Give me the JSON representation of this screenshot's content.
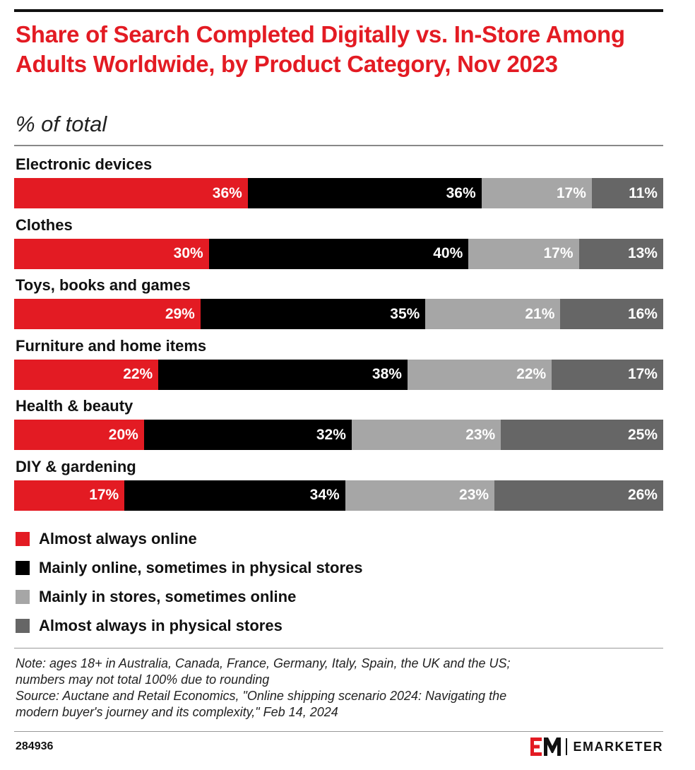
{
  "chart_data": {
    "type": "bar",
    "orientation": "horizontal",
    "stacked": true,
    "title": "Share of Search Completed Digitally vs. In-Store Among Adults Worldwide, by Product Category, Nov 2023",
    "subtitle": "% of total",
    "categories": [
      "Electronic devices",
      "Clothes",
      "Toys, books and games",
      "Furniture and home items",
      "Health & beauty",
      "DIY & gardening"
    ],
    "series": [
      {
        "name": "Almost always online",
        "color": "#e31b23",
        "values": [
          36,
          30,
          29,
          22,
          20,
          17
        ]
      },
      {
        "name": "Mainly online, sometimes in physical stores",
        "color": "#000000",
        "values": [
          36,
          40,
          35,
          38,
          32,
          34
        ]
      },
      {
        "name": "Mainly in stores, sometimes online",
        "color": "#a6a6a6",
        "values": [
          17,
          17,
          21,
          22,
          23,
          23
        ]
      },
      {
        "name": "Almost always in physical stores",
        "color": "#666666",
        "values": [
          11,
          13,
          16,
          17,
          25,
          26
        ]
      }
    ],
    "value_suffix": "%",
    "legend_position": "bottom-left"
  },
  "note": {
    "line1": "Note: ages 18+ in Australia, Canada, France, Germany, Italy, Spain, the UK and the US;",
    "line2": "numbers may not total 100% due to rounding",
    "line3": "Source: Auctane and Retail Economics, \"Online shipping scenario 2024: Navigating the",
    "line4": "modern buyer's journey and its complexity,\" Feb 14, 2024"
  },
  "footer": {
    "chart_id": "284936",
    "brand": "EMARKETER",
    "logo_icon": "em-logo-icon"
  }
}
